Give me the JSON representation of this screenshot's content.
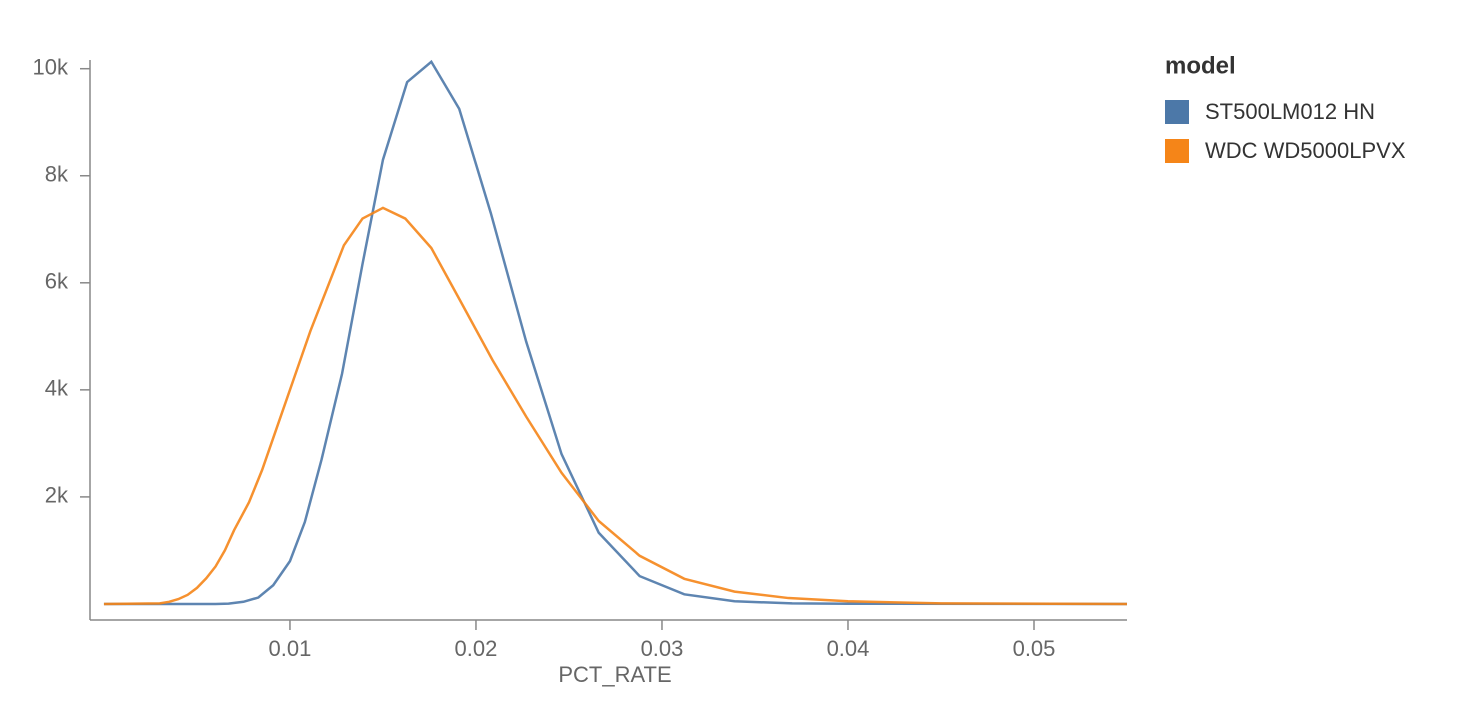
{
  "chart_data": {
    "type": "line",
    "x_label": "PCT_RATE",
    "legend_title": "model",
    "legend": "right",
    "grid": false,
    "xlim": [
      -0.00075,
      0.055
    ],
    "ylim": [
      -300,
      10200
    ],
    "xticks": [
      0.01,
      0.02,
      0.03,
      0.04,
      0.05
    ],
    "yticks": [
      {
        "value": 2000,
        "label": "2k"
      },
      {
        "value": 4000,
        "label": "4k"
      },
      {
        "value": 6000,
        "label": "6k"
      },
      {
        "value": 8000,
        "label": "8k"
      },
      {
        "value": 10000,
        "label": "10k"
      }
    ],
    "series": [
      {
        "name": "ST500LM012 HN",
        "color": "#4c78a8",
        "x": [
          0,
          0.006,
          0.0067,
          0.0075,
          0.0083,
          0.0091,
          0.01,
          0.0108,
          0.0117,
          0.0128,
          0.0139,
          0.015,
          0.0163,
          0.0176,
          0.0191,
          0.0208,
          0.0227,
          0.0246,
          0.0266,
          0.0288,
          0.0312,
          0.0339,
          0.037,
          0.04,
          0.055
        ],
        "values": [
          0,
          0,
          5,
          40,
          120,
          350,
          800,
          1530,
          2700,
          4300,
          6350,
          8300,
          9750,
          10130,
          9250,
          7300,
          4900,
          2800,
          1330,
          520,
          180,
          50,
          10,
          3,
          0
        ]
      },
      {
        "name": "WDC WD5000LPVX",
        "color": "#f58518",
        "x": [
          0,
          0.003,
          0.0035,
          0.004,
          0.0045,
          0.005,
          0.0055,
          0.006,
          0.0065,
          0.007,
          0.0078,
          0.0085,
          0.0093,
          0.0102,
          0.0111,
          0.012,
          0.0129,
          0.0139,
          0.015,
          0.0162,
          0.0176,
          0.0191,
          0.0209,
          0.0227,
          0.0246,
          0.0266,
          0.0288,
          0.0312,
          0.0339,
          0.0368,
          0.04,
          0.045,
          0.055
        ],
        "values": [
          0,
          10,
          40,
          90,
          170,
          300,
          480,
          700,
          1000,
          1380,
          1900,
          2500,
          3300,
          4200,
          5100,
          5900,
          6700,
          7200,
          7400,
          7200,
          6650,
          5700,
          4550,
          3500,
          2450,
          1550,
          900,
          470,
          230,
          110,
          50,
          10,
          0
        ]
      }
    ]
  }
}
